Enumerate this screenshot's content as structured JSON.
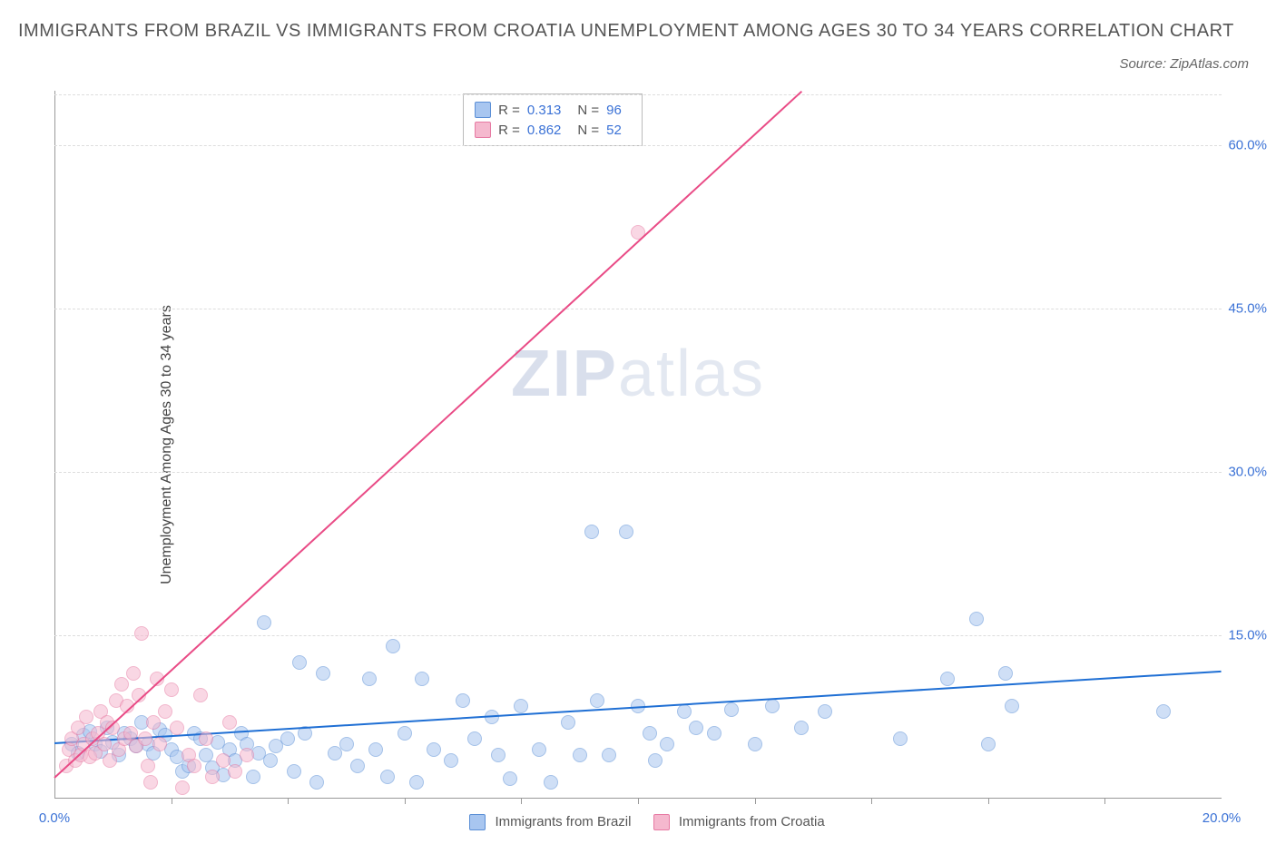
{
  "title": "IMMIGRANTS FROM BRAZIL VS IMMIGRANTS FROM CROATIA UNEMPLOYMENT AMONG AGES 30 TO 34 YEARS CORRELATION CHART",
  "source_label": "Source: ZipAtlas.com",
  "ylabel": "Unemployment Among Ages 30 to 34 years",
  "watermark": {
    "bold": "ZIP",
    "light": "atlas"
  },
  "chart": {
    "type": "scatter",
    "xlim": [
      0,
      20
    ],
    "ylim": [
      0,
      65
    ],
    "x_ticks": [
      0,
      20
    ],
    "x_tick_labels": [
      "0.0%",
      "20.0%"
    ],
    "x_minor_ticks": [
      2,
      4,
      6,
      8,
      10,
      12,
      14,
      16,
      18
    ],
    "y_ticks": [
      15,
      30,
      45,
      60
    ],
    "y_tick_labels": [
      "15.0%",
      "30.0%",
      "45.0%",
      "60.0%"
    ],
    "grid_color": "#dddddd",
    "axis_color": "#999999",
    "background_color": "#ffffff",
    "marker_radius": 8,
    "marker_opacity": 0.55,
    "series": [
      {
        "name": "Immigrants from Brazil",
        "color_fill": "#a8c6f0",
        "color_stroke": "#5b8fd6",
        "trend_color": "#1f6fd4",
        "R": "0.313",
        "N": "96",
        "trend": {
          "x1": 0,
          "y1": 5.2,
          "x2": 20,
          "y2": 11.8
        },
        "points": [
          [
            0.3,
            5.0
          ],
          [
            0.4,
            4.2
          ],
          [
            0.5,
            5.8
          ],
          [
            0.6,
            6.2
          ],
          [
            0.7,
            5.0
          ],
          [
            0.8,
            4.3
          ],
          [
            0.9,
            6.5
          ],
          [
            1.0,
            5.2
          ],
          [
            1.1,
            4.0
          ],
          [
            1.2,
            6.0
          ],
          [
            1.3,
            5.5
          ],
          [
            1.4,
            4.8
          ],
          [
            1.5,
            7.0
          ],
          [
            1.6,
            5.0
          ],
          [
            1.7,
            4.2
          ],
          [
            1.8,
            6.3
          ],
          [
            1.9,
            5.8
          ],
          [
            2.0,
            4.5
          ],
          [
            2.1,
            3.8
          ],
          [
            2.2,
            2.5
          ],
          [
            2.3,
            3.0
          ],
          [
            2.4,
            6.0
          ],
          [
            2.5,
            5.5
          ],
          [
            2.6,
            4.0
          ],
          [
            2.7,
            2.8
          ],
          [
            2.8,
            5.2
          ],
          [
            2.9,
            2.2
          ],
          [
            3.0,
            4.5
          ],
          [
            3.1,
            3.5
          ],
          [
            3.2,
            6.0
          ],
          [
            3.3,
            5.0
          ],
          [
            3.4,
            2.0
          ],
          [
            3.5,
            4.2
          ],
          [
            3.6,
            16.2
          ],
          [
            3.7,
            3.5
          ],
          [
            3.8,
            4.8
          ],
          [
            4.0,
            5.5
          ],
          [
            4.1,
            2.5
          ],
          [
            4.2,
            12.5
          ],
          [
            4.3,
            6.0
          ],
          [
            4.5,
            1.5
          ],
          [
            4.6,
            11.5
          ],
          [
            4.8,
            4.2
          ],
          [
            5.0,
            5.0
          ],
          [
            5.2,
            3.0
          ],
          [
            5.4,
            11.0
          ],
          [
            5.5,
            4.5
          ],
          [
            5.7,
            2.0
          ],
          [
            5.8,
            14.0
          ],
          [
            6.0,
            6.0
          ],
          [
            6.2,
            1.5
          ],
          [
            6.3,
            11.0
          ],
          [
            6.5,
            4.5
          ],
          [
            6.8,
            3.5
          ],
          [
            7.0,
            9.0
          ],
          [
            7.2,
            5.5
          ],
          [
            7.5,
            7.5
          ],
          [
            7.6,
            4.0
          ],
          [
            7.8,
            1.8
          ],
          [
            8.0,
            8.5
          ],
          [
            8.3,
            4.5
          ],
          [
            8.5,
            1.5
          ],
          [
            8.8,
            7.0
          ],
          [
            9.0,
            4.0
          ],
          [
            9.2,
            24.5
          ],
          [
            9.3,
            9.0
          ],
          [
            9.5,
            4.0
          ],
          [
            9.8,
            24.5
          ],
          [
            10.0,
            8.5
          ],
          [
            10.2,
            6.0
          ],
          [
            10.3,
            3.5
          ],
          [
            10.5,
            5.0
          ],
          [
            10.8,
            8.0
          ],
          [
            11.0,
            6.5
          ],
          [
            11.3,
            6.0
          ],
          [
            11.6,
            8.2
          ],
          [
            12.0,
            5.0
          ],
          [
            12.3,
            8.5
          ],
          [
            12.8,
            6.5
          ],
          [
            13.2,
            8.0
          ],
          [
            14.5,
            5.5
          ],
          [
            15.3,
            11.0
          ],
          [
            15.8,
            16.5
          ],
          [
            16.0,
            5.0
          ],
          [
            16.3,
            11.5
          ],
          [
            16.4,
            8.5
          ],
          [
            19.0,
            8.0
          ]
        ]
      },
      {
        "name": "Immigrants from Croatia",
        "color_fill": "#f5b8ce",
        "color_stroke": "#e77aa3",
        "trend_color": "#e94b86",
        "R": "0.862",
        "N": "52",
        "trend": {
          "x1": 0,
          "y1": 2.0,
          "x2": 12.8,
          "y2": 65
        },
        "points": [
          [
            0.2,
            3.0
          ],
          [
            0.25,
            4.5
          ],
          [
            0.3,
            5.5
          ],
          [
            0.35,
            3.5
          ],
          [
            0.4,
            6.5
          ],
          [
            0.45,
            4.0
          ],
          [
            0.5,
            5.0
          ],
          [
            0.55,
            7.5
          ],
          [
            0.6,
            3.8
          ],
          [
            0.65,
            5.5
          ],
          [
            0.7,
            4.2
          ],
          [
            0.75,
            6.0
          ],
          [
            0.8,
            8.0
          ],
          [
            0.85,
            5.0
          ],
          [
            0.9,
            7.0
          ],
          [
            0.95,
            3.5
          ],
          [
            1.0,
            6.5
          ],
          [
            1.05,
            9.0
          ],
          [
            1.1,
            4.5
          ],
          [
            1.15,
            10.5
          ],
          [
            1.2,
            5.5
          ],
          [
            1.25,
            8.5
          ],
          [
            1.3,
            6.0
          ],
          [
            1.35,
            11.5
          ],
          [
            1.4,
            4.8
          ],
          [
            1.45,
            9.5
          ],
          [
            1.5,
            15.2
          ],
          [
            1.55,
            5.5
          ],
          [
            1.6,
            3.0
          ],
          [
            1.65,
            1.5
          ],
          [
            1.7,
            7.0
          ],
          [
            1.75,
            11.0
          ],
          [
            1.8,
            5.0
          ],
          [
            1.9,
            8.0
          ],
          [
            2.0,
            10.0
          ],
          [
            2.1,
            6.5
          ],
          [
            2.2,
            1.0
          ],
          [
            2.3,
            4.0
          ],
          [
            2.4,
            3.0
          ],
          [
            2.5,
            9.5
          ],
          [
            2.6,
            5.5
          ],
          [
            2.7,
            2.0
          ],
          [
            2.9,
            3.5
          ],
          [
            3.0,
            7.0
          ],
          [
            3.1,
            2.5
          ],
          [
            3.3,
            4.0
          ],
          [
            10.0,
            52.0
          ]
        ]
      }
    ]
  },
  "legend_top": {
    "r_label": "R =",
    "n_label": "N ="
  },
  "bottom_legend": {
    "items": [
      "Immigrants from Brazil",
      "Immigrants from Croatia"
    ]
  }
}
